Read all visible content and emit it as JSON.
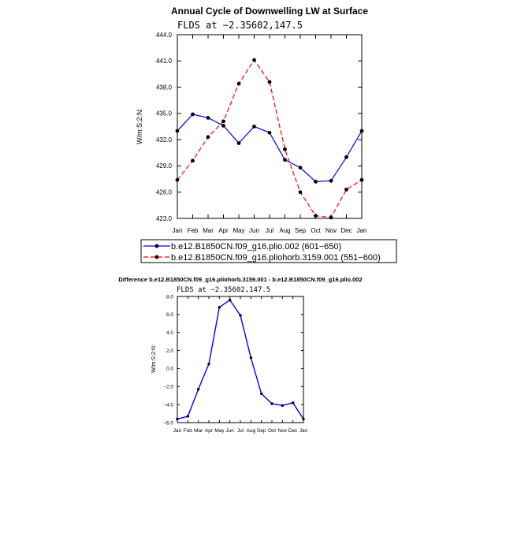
{
  "chart_data": [
    {
      "type": "line",
      "title": "Annual Cycle of Downwelling LW at Surface",
      "subtitle": "FLDS  at  −2.35602,147.5",
      "ylabel": "W/m:S:2:N:",
      "categories": [
        "Jan",
        "Feb",
        "Mar",
        "Apr",
        "May",
        "Jun",
        "Jul",
        "Aug",
        "Sep",
        "Oct",
        "Nov",
        "Dec",
        "Jan"
      ],
      "ylim": [
        423.0,
        444.0
      ],
      "yticks": [
        "423.0",
        "426.0",
        "429.0",
        "432.0",
        "435.0",
        "438.0",
        "441.0",
        "444.0"
      ],
      "grid": false,
      "legend_position": "bottom",
      "series": [
        {
          "name": "b.e12.B1850CN.f09_g16.plio.002 (601−650)",
          "color": "#0000ff",
          "dash": "solid",
          "values": [
            433.0,
            434.9,
            434.5,
            433.6,
            431.6,
            433.5,
            432.8,
            429.7,
            428.8,
            427.2,
            427.3,
            430.0,
            433.0
          ]
        },
        {
          "name": "b.e12.B1850CN.f09_g16.pliohorb.3159.001 (551−600)",
          "color": "#ff0000",
          "dash": "dashed",
          "values": [
            427.4,
            429.6,
            432.3,
            434.1,
            438.4,
            441.1,
            438.6,
            430.9,
            426.0,
            423.3,
            423.1,
            426.3,
            427.4
          ]
        }
      ]
    },
    {
      "type": "line",
      "title": "Difference b.e12.B1850CN.f09_g16.pliohorb.3159.001 - b.e12.B1850CN.f09_g16.plio.002",
      "subtitle": "FLDS  at  −2.35602,147.5",
      "ylabel": "W/m:S:2:N:",
      "categories": [
        "Jan",
        "Feb",
        "Mar",
        "Apr",
        "May",
        "Jun",
        "Jul",
        "Aug",
        "Sep",
        "Oct",
        "Nov",
        "Dec",
        "Jan"
      ],
      "ylim": [
        -6.0,
        8.0
      ],
      "yticks": [
        "−6.0",
        "−4.0",
        "−2.0",
        "0.0",
        "2.0",
        "4.0",
        "6.0",
        "8.0"
      ],
      "grid": false,
      "series": [
        {
          "color": "#0000ff",
          "dash": "solid",
          "values": [
            -5.6,
            -5.3,
            -2.3,
            0.5,
            6.8,
            7.6,
            5.9,
            1.2,
            -2.8,
            -3.9,
            -4.1,
            -3.8,
            -5.6
          ]
        }
      ]
    }
  ]
}
